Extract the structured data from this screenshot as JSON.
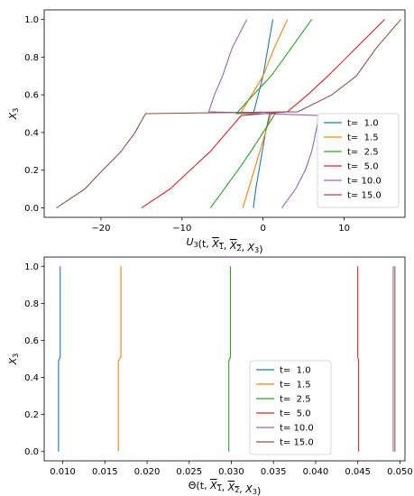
{
  "chart_data": [
    {
      "type": "line",
      "xlabel": "U3(t, X1, X2, X3)",
      "ylabel": "X3",
      "xlim": [
        -27,
        17.5
      ],
      "ylim": [
        -0.05,
        1.05
      ],
      "xticks": [
        -20,
        -10,
        0,
        10
      ],
      "xtick_labels": [
        "−20",
        "−10",
        "0",
        "10"
      ],
      "yticks": [
        0.0,
        0.2,
        0.4,
        0.6,
        0.8,
        1.0
      ],
      "ytick_labels": [
        "0.0",
        "0.2",
        "0.4",
        "0.6",
        "0.8",
        "1.0"
      ],
      "legend_position": "lower-right",
      "series": [
        {
          "name": "t=  1.0",
          "color": "#1f77b4",
          "x": [
            -1.2,
            -0.9,
            -0.5,
            -0.1,
            0.3,
            0.8,
            -1.2,
            -0.6,
            0.0,
            0.6,
            1.2
          ],
          "y": [
            0.0,
            0.1,
            0.2,
            0.3,
            0.4,
            0.5,
            0.5,
            0.6,
            0.7,
            0.85,
            1.0
          ]
        },
        {
          "name": "t=  1.5",
          "color": "#ff7f0e",
          "x": [
            -2.5,
            -1.8,
            -1.1,
            -0.4,
            0.3,
            1.0,
            -2.8,
            -1.4,
            0.0,
            1.4,
            3.0
          ],
          "y": [
            0.0,
            0.1,
            0.2,
            0.3,
            0.4,
            0.5,
            0.5,
            0.6,
            0.7,
            0.85,
            1.0
          ]
        },
        {
          "name": "t=  2.5",
          "color": "#2ca02c",
          "x": [
            -6.5,
            -4.8,
            -3.1,
            -1.5,
            0.0,
            1.5,
            -3.3,
            -1.2,
            1.0,
            3.5,
            6.0
          ],
          "y": [
            0.0,
            0.1,
            0.2,
            0.3,
            0.4,
            0.5,
            0.5,
            0.6,
            0.7,
            0.85,
            1.0
          ]
        },
        {
          "name": "t=  5.0",
          "color": "#d62728",
          "x": [
            -15.0,
            -11.5,
            -9.0,
            -6.5,
            -4.5,
            -2.7,
            3.0,
            5.5,
            8.0,
            11.5,
            15.0
          ],
          "y": [
            0.0,
            0.1,
            0.2,
            0.3,
            0.4,
            0.49,
            0.51,
            0.6,
            0.7,
            0.85,
            1.0
          ]
        },
        {
          "name": "t= 10.0",
          "color": "#9467bd",
          "x": [
            2.3,
            4.0,
            5.2,
            6.0,
            6.5,
            6.9,
            -6.7,
            -6.0,
            -5.0,
            -3.8,
            -2.0
          ],
          "y": [
            0.0,
            0.1,
            0.2,
            0.3,
            0.4,
            0.49,
            0.51,
            0.6,
            0.7,
            0.85,
            1.0
          ]
        },
        {
          "name": "t= 15.0",
          "color": "#8c564b",
          "x": [
            -25.5,
            -22.0,
            -19.8,
            -17.5,
            -15.8,
            -14.5,
            4.3,
            8.5,
            11.5,
            14.0,
            17.0
          ],
          "y": [
            0.0,
            0.1,
            0.2,
            0.3,
            0.4,
            0.5,
            0.51,
            0.6,
            0.7,
            0.85,
            1.0
          ]
        }
      ]
    },
    {
      "type": "line",
      "xlabel": "Θ(t, X1, X2, X3)",
      "ylabel": "X3",
      "xlim": [
        0.0078,
        0.0506
      ],
      "ylim": [
        -0.05,
        1.05
      ],
      "xticks": [
        0.01,
        0.015,
        0.02,
        0.025,
        0.03,
        0.035,
        0.04,
        0.045,
        0.05
      ],
      "xtick_labels": [
        "0.010",
        "0.015",
        "0.020",
        "0.025",
        "0.030",
        "0.035",
        "0.040",
        "0.045",
        "0.050"
      ],
      "yticks": [
        0.0,
        0.2,
        0.4,
        0.6,
        0.8,
        1.0
      ],
      "ytick_labels": [
        "0.0",
        "0.2",
        "0.4",
        "0.6",
        "0.8",
        "1.0"
      ],
      "legend_position": "lower-center",
      "series": [
        {
          "name": "t=  1.0",
          "color": "#1f77b4",
          "x": [
            0.0095,
            0.0095,
            0.0097,
            0.0097
          ],
          "y": [
            0.0,
            0.49,
            0.51,
            1.0
          ]
        },
        {
          "name": "t=  1.5",
          "color": "#ff7f0e",
          "x": [
            0.0166,
            0.0166,
            0.0169,
            0.0169
          ],
          "y": [
            0.0,
            0.49,
            0.51,
            1.0
          ]
        },
        {
          "name": "t=  2.5",
          "color": "#2ca02c",
          "x": [
            0.0297,
            0.0297,
            0.0299,
            0.0299
          ],
          "y": [
            0.0,
            0.49,
            0.51,
            1.0
          ]
        },
        {
          "name": "t=  5.0",
          "color": "#d62728",
          "x": [
            0.0451,
            0.0451,
            0.045,
            0.045
          ],
          "y": [
            0.0,
            0.49,
            0.51,
            1.0
          ]
        },
        {
          "name": "t= 10.0",
          "color": "#9467bd",
          "x": [
            0.0492,
            0.0492,
            0.0492,
            0.0492
          ],
          "y": [
            0.0,
            0.49,
            0.51,
            1.0
          ]
        },
        {
          "name": "t= 15.0",
          "color": "#8c564b",
          "x": [
            0.0494,
            0.0494,
            0.0494,
            0.0494
          ],
          "y": [
            0.0,
            0.49,
            0.51,
            1.0
          ]
        }
      ]
    }
  ]
}
